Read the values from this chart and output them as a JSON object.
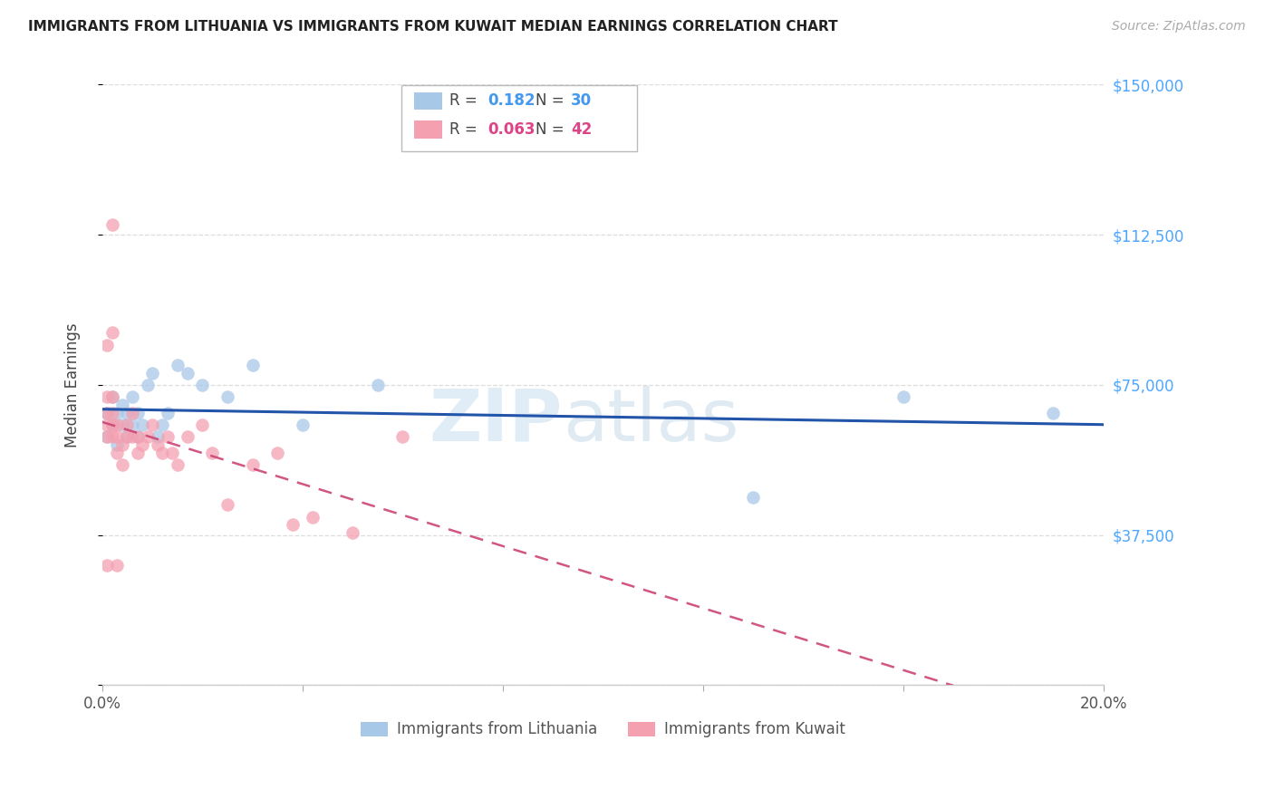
{
  "title": "IMMIGRANTS FROM LITHUANIA VS IMMIGRANTS FROM KUWAIT MEDIAN EARNINGS CORRELATION CHART",
  "source": "Source: ZipAtlas.com",
  "ylabel": "Median Earnings",
  "xlim": [
    0.0,
    0.2
  ],
  "ylim": [
    0,
    150000
  ],
  "yticks": [
    0,
    37500,
    75000,
    112500,
    150000
  ],
  "ytick_labels_right": [
    "",
    "$37,500",
    "$75,000",
    "$112,500",
    "$150,000"
  ],
  "xticks": [
    0.0,
    0.04,
    0.08,
    0.12,
    0.16,
    0.2
  ],
  "xtick_labels": [
    "0.0%",
    "",
    "",
    "",
    "",
    "20.0%"
  ],
  "legend_label1": "Immigrants from Lithuania",
  "legend_label2": "Immigrants from Kuwait",
  "color_lithuania": "#a8c8e8",
  "color_kuwait": "#f4a0b0",
  "color_line_lithuania": "#2255aa",
  "color_line_kuwait": "#cc4477",
  "color_ytick": "#4da6ff",
  "watermark_zip": "ZIP",
  "watermark_atlas": "atlas",
  "background_color": "#ffffff",
  "grid_color": "#dddddd",
  "lithuania_x": [
    0.001,
    0.001,
    0.002,
    0.002,
    0.003,
    0.003,
    0.004,
    0.004,
    0.005,
    0.005,
    0.006,
    0.006,
    0.007,
    0.007,
    0.008,
    0.009,
    0.01,
    0.011,
    0.012,
    0.013,
    0.015,
    0.017,
    0.02,
    0.025,
    0.03,
    0.04,
    0.055,
    0.13,
    0.16,
    0.19
  ],
  "lithuania_y": [
    62000,
    68000,
    65000,
    72000,
    60000,
    68000,
    65000,
    70000,
    62000,
    68000,
    72000,
    65000,
    68000,
    62000,
    65000,
    75000,
    78000,
    62000,
    65000,
    68000,
    80000,
    78000,
    75000,
    72000,
    80000,
    65000,
    75000,
    47000,
    72000,
    68000
  ],
  "kuwait_x": [
    0.001,
    0.001,
    0.001,
    0.001,
    0.001,
    0.002,
    0.002,
    0.002,
    0.002,
    0.003,
    0.003,
    0.003,
    0.004,
    0.004,
    0.005,
    0.005,
    0.006,
    0.006,
    0.007,
    0.007,
    0.008,
    0.009,
    0.01,
    0.011,
    0.012,
    0.013,
    0.014,
    0.015,
    0.017,
    0.02,
    0.022,
    0.025,
    0.03,
    0.035,
    0.038,
    0.042,
    0.05,
    0.06,
    0.002,
    0.003,
    0.001,
    0.002
  ],
  "kuwait_y": [
    62000,
    65000,
    68000,
    72000,
    85000,
    62000,
    65000,
    68000,
    72000,
    58000,
    62000,
    65000,
    60000,
    55000,
    62000,
    65000,
    68000,
    62000,
    58000,
    62000,
    60000,
    62000,
    65000,
    60000,
    58000,
    62000,
    58000,
    55000,
    62000,
    65000,
    58000,
    45000,
    55000,
    58000,
    40000,
    42000,
    38000,
    62000,
    88000,
    30000,
    30000,
    115000
  ]
}
